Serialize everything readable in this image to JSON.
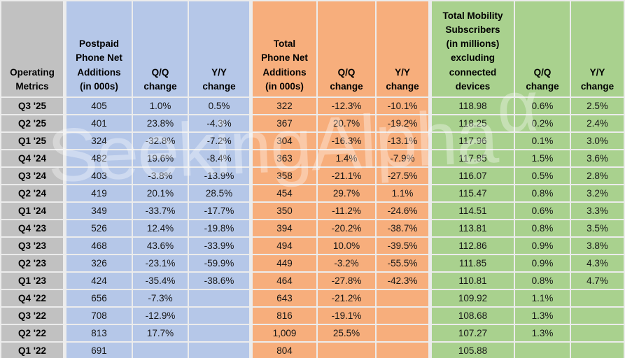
{
  "watermark": {
    "text": "SeekingAlpha",
    "alpha_symbol": "α"
  },
  "colors": {
    "label_column_bg": "#c1c1c1",
    "postpaid_section_bg": "#b5c7e8",
    "total_phone_section_bg": "#f7ae7c",
    "subscribers_section_bg": "#a9d18e",
    "gridline": "#ececec",
    "text": "#161616"
  },
  "table": {
    "header": [
      {
        "id": "operating-metrics",
        "label": "Operating\nMetrics"
      },
      {
        "id": "postpaid-phone-net-adds",
        "label": "Postpaid\nPhone Net\nAdditions\n(in 000s)"
      },
      {
        "id": "postpaid-qq-change",
        "label": "Q/Q\nchange"
      },
      {
        "id": "postpaid-yy-change",
        "label": "Y/Y\nchange"
      },
      {
        "id": "total-phone-net-adds",
        "label": "Total\nPhone Net\nAdditions\n(in 000s)"
      },
      {
        "id": "total-phone-qq-change",
        "label": "Q/Q\nchange"
      },
      {
        "id": "total-phone-yy-change",
        "label": "Y/Y\nchange"
      },
      {
        "id": "total-mobility-subscribers",
        "label": "Total Mobility\nSubscribers\n(in millions)\nexcluding\nconnected\ndevices"
      },
      {
        "id": "subscribers-qq-change",
        "label": "Q/Q\nchange"
      },
      {
        "id": "subscribers-yy-change",
        "label": "Y/Y\nchange"
      }
    ],
    "rows": [
      {
        "label": "Q3 '25",
        "values": [
          "405",
          "1.0%",
          "0.5%",
          "322",
          "-12.3%",
          "-10.1%",
          "118.98",
          "0.6%",
          "2.5%"
        ]
      },
      {
        "label": "Q2 '25",
        "values": [
          "401",
          "23.8%",
          "-4.3%",
          "367",
          "20.7%",
          "-19.2%",
          "118.25",
          "0.2%",
          "2.4%"
        ]
      },
      {
        "label": "Q1 '25",
        "values": [
          "324",
          "-32.8%",
          "-7.2%",
          "304",
          "-16.3%",
          "-13.1%",
          "117.96",
          "0.1%",
          "3.0%"
        ]
      },
      {
        "label": "Q4 '24",
        "values": [
          "482",
          "19.6%",
          "-8.4%",
          "363",
          "1.4%",
          "-7.9%",
          "117.85",
          "1.5%",
          "3.6%"
        ]
      },
      {
        "label": "Q3 '24",
        "values": [
          "403",
          "-3.8%",
          "-13.9%",
          "358",
          "-21.1%",
          "-27.5%",
          "116.07",
          "0.5%",
          "2.8%"
        ]
      },
      {
        "label": "Q2 '24",
        "values": [
          "419",
          "20.1%",
          "28.5%",
          "454",
          "29.7%",
          "1.1%",
          "115.47",
          "0.8%",
          "3.2%"
        ]
      },
      {
        "label": "Q1 '24",
        "values": [
          "349",
          "-33.7%",
          "-17.7%",
          "350",
          "-11.2%",
          "-24.6%",
          "114.51",
          "0.6%",
          "3.3%"
        ]
      },
      {
        "label": "Q4 '23",
        "values": [
          "526",
          "12.4%",
          "-19.8%",
          "394",
          "-20.2%",
          "-38.7%",
          "113.81",
          "0.8%",
          "3.5%"
        ]
      },
      {
        "label": "Q3 '23",
        "values": [
          "468",
          "43.6%",
          "-33.9%",
          "494",
          "10.0%",
          "-39.5%",
          "112.86",
          "0.9%",
          "3.8%"
        ]
      },
      {
        "label": "Q2 '23",
        "values": [
          "326",
          "-23.1%",
          "-59.9%",
          "449",
          "-3.2%",
          "-55.5%",
          "111.85",
          "0.9%",
          "4.3%"
        ]
      },
      {
        "label": "Q1 '23",
        "values": [
          "424",
          "-35.4%",
          "-38.6%",
          "464",
          "-27.8%",
          "-42.3%",
          "110.81",
          "0.8%",
          "4.7%"
        ]
      },
      {
        "label": "Q4 '22",
        "values": [
          "656",
          "-7.3%",
          "",
          "643",
          "-21.2%",
          "",
          "109.92",
          "1.1%",
          ""
        ]
      },
      {
        "label": "Q3 '22",
        "values": [
          "708",
          "-12.9%",
          "",
          "816",
          "-19.1%",
          "",
          "108.68",
          "1.3%",
          ""
        ]
      },
      {
        "label": "Q2 '22",
        "values": [
          "813",
          "17.7%",
          "",
          "1,009",
          "25.5%",
          "",
          "107.27",
          "1.3%",
          ""
        ]
      },
      {
        "label": "Q1 '22",
        "values": [
          "691",
          "",
          "",
          "804",
          "",
          "",
          "105.88",
          "",
          ""
        ]
      }
    ]
  }
}
